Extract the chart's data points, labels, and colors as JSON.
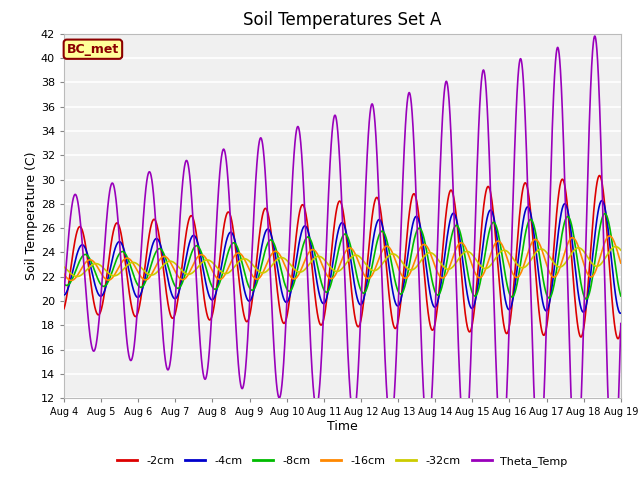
{
  "title": "Soil Temperatures Set A",
  "xlabel": "Time",
  "ylabel": "Soil Temperature (C)",
  "ylim": [
    12,
    42
  ],
  "bg_color": "#f0f0f0",
  "grid_color": "#ffffff",
  "series_colors": {
    "-2cm": "#dd0000",
    "-4cm": "#0000cc",
    "-8cm": "#00bb00",
    "-16cm": "#ff8800",
    "-32cm": "#cccc00",
    "Theta_Temp": "#9900bb"
  },
  "annotation_text": "BC_met",
  "annotation_bg": "#ffff99",
  "annotation_border": "#8b0000",
  "x_tick_labels": [
    "Aug 4",
    "Aug 5",
    "Aug 6",
    "Aug 7",
    "Aug 8",
    "Aug 9",
    "Aug 10",
    "Aug 11",
    "Aug 12",
    "Aug 13",
    "Aug 14",
    "Aug 15",
    "Aug 16",
    "Aug 17",
    "Aug 18",
    "Aug 19"
  ],
  "title_fontsize": 12,
  "axis_label_fontsize": 9
}
